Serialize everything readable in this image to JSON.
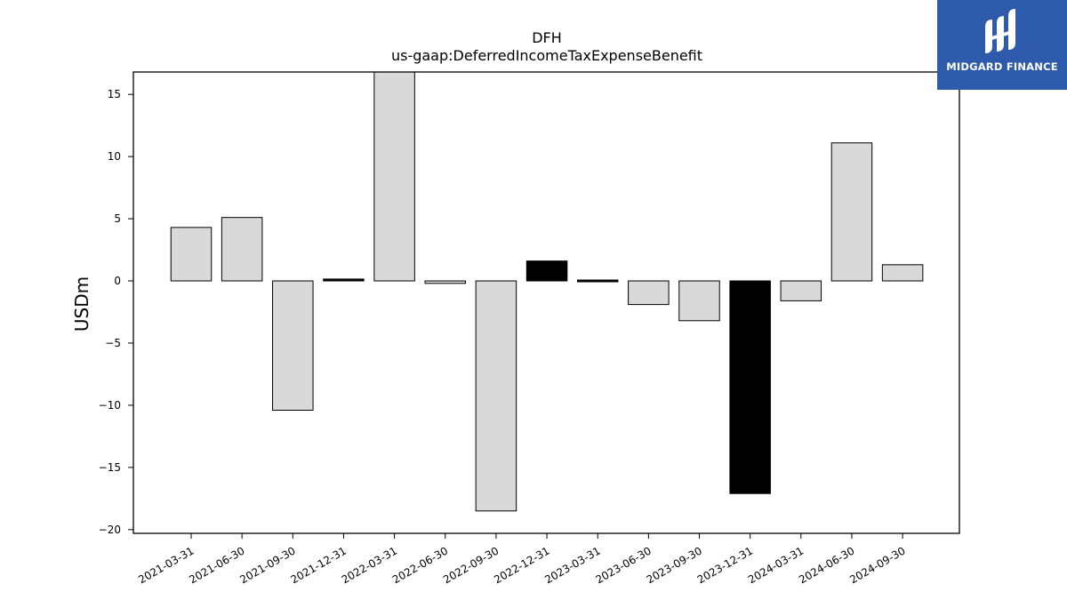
{
  "brand": {
    "name": "MIDGARD FINANCE",
    "color": "#2d5aab"
  },
  "chart_data": {
    "type": "bar",
    "title": "DFH",
    "subtitle": "us-gaap:DeferredIncomeTaxExpenseBenefit",
    "ylabel": "USDm",
    "xlabel": "",
    "ylim": [
      -20.3,
      16.8
    ],
    "yticks": [
      15,
      10,
      5,
      0,
      -5,
      -10,
      -15,
      -20
    ],
    "ytick_labels": [
      "15",
      "10",
      "5",
      "0",
      "−5",
      "−10",
      "−15",
      "−20"
    ],
    "grid": false,
    "categories": [
      "2021-03-31",
      "2021-06-30",
      "2021-09-30",
      "2021-12-31",
      "2022-03-31",
      "2022-06-30",
      "2022-09-30",
      "2022-12-31",
      "2023-03-31",
      "2023-06-30",
      "2023-09-30",
      "2023-12-31",
      "2024-03-31",
      "2024-06-30",
      "2024-09-30"
    ],
    "values": [
      4.3,
      5.1,
      -10.4,
      0.15,
      17.8,
      -0.2,
      -18.5,
      1.6,
      -0.05,
      -1.9,
      -3.2,
      -17.1,
      -1.6,
      11.1,
      1.3
    ],
    "bar_colors": [
      "#d9d9d9",
      "#d9d9d9",
      "#d9d9d9",
      "#000000",
      "#d9d9d9",
      "#d9d9d9",
      "#d9d9d9",
      "#000000",
      "#000000",
      "#d9d9d9",
      "#d9d9d9",
      "#000000",
      "#d9d9d9",
      "#d9d9d9",
      "#d9d9d9"
    ],
    "edge_color": "#000000"
  }
}
